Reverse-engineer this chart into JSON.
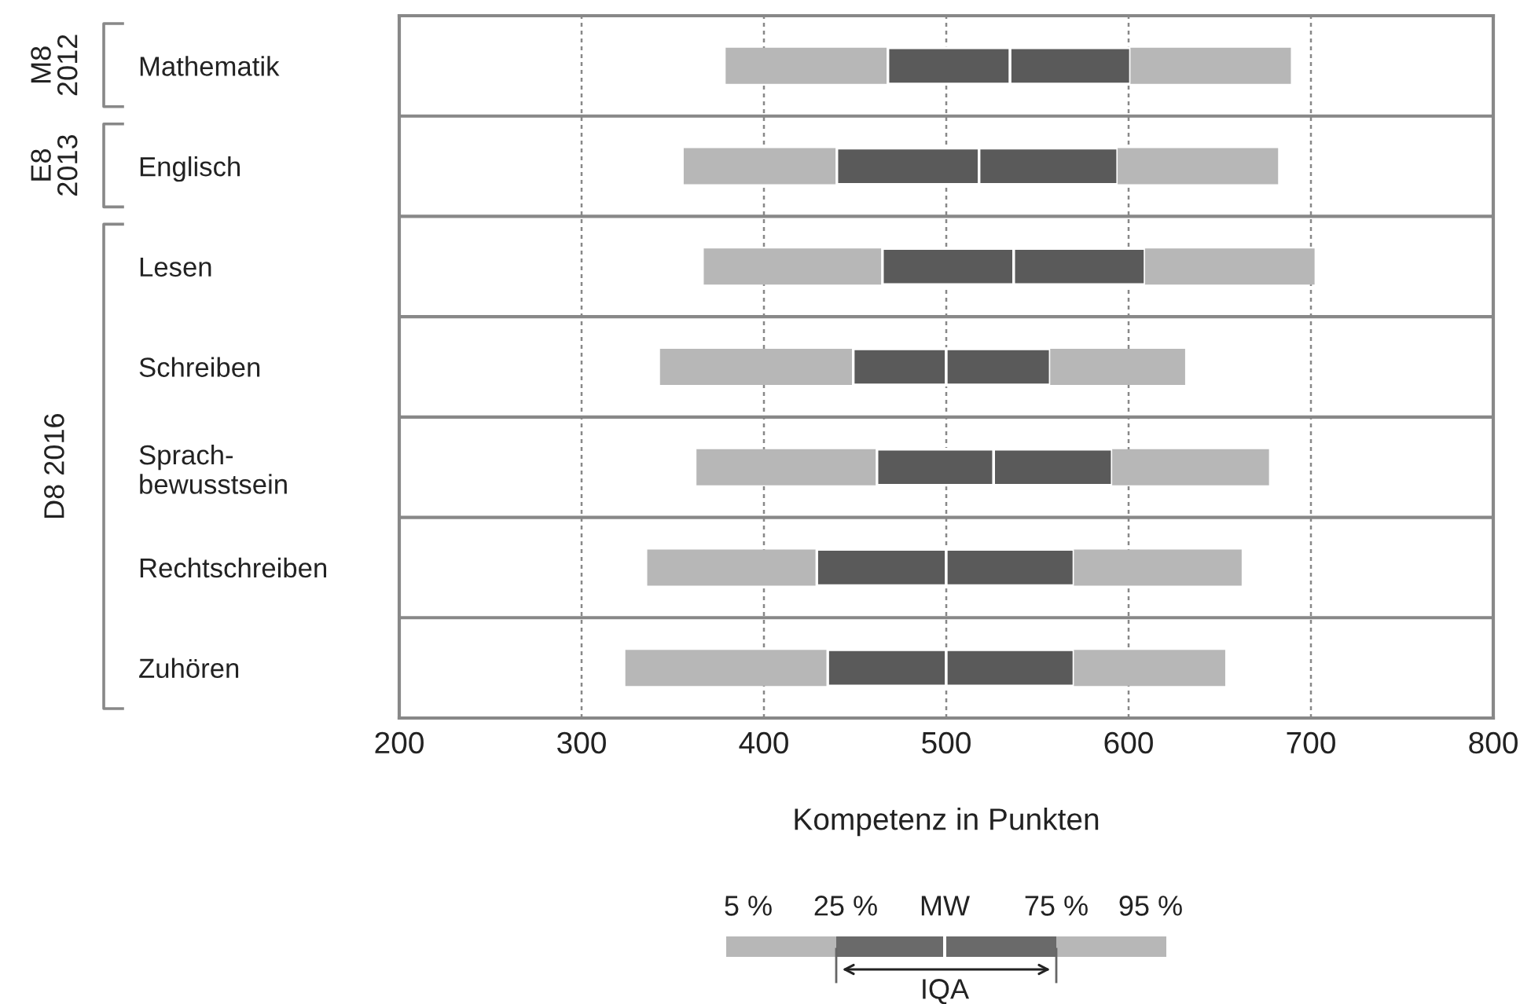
{
  "chart_data": {
    "type": "bar",
    "orientation": "horizontal",
    "categories": [
      "Mathematik",
      "Englisch",
      "Lesen",
      "Schreiben",
      "Sprach-\nbewusstsein",
      "Rechtschreiben",
      "Zuhören"
    ],
    "series": [
      {
        "color": "#b7b7b7",
        "base": [
          379,
          356,
          367,
          343,
          363,
          336,
          324
        ],
        "values": [
          89,
          84,
          98,
          106,
          99,
          93,
          111
        ]
      },
      {
        "color": "#5a5a5a",
        "base": [
          468,
          440,
          465,
          449,
          462,
          429,
          435
        ],
        "values": [
          67,
          78,
          72,
          51,
          64,
          71,
          65
        ]
      },
      {
        "color": "#5a5a5a",
        "base": [
          535,
          518,
          537,
          500,
          526,
          500,
          500
        ],
        "values": [
          66,
          76,
          72,
          57,
          65,
          70,
          70
        ]
      },
      {
        "color": "#b7b7b7",
        "base": [
          601,
          594,
          609,
          557,
          591,
          570,
          570
        ],
        "values": [
          88,
          88,
          93,
          74,
          86,
          92,
          83
        ]
      }
    ],
    "xlim": [
      200,
      800
    ],
    "xticks": [
      200,
      300,
      400,
      500,
      600,
      700,
      800
    ],
    "xlabel": "Kompetenz in Punkten",
    "grid": "x",
    "annotations": [
      "M8\n2012",
      "E8\n2013",
      "D8 2016",
      "5 %",
      "25 %",
      "MW",
      "75 %",
      "95 %",
      "IQA"
    ]
  }
}
